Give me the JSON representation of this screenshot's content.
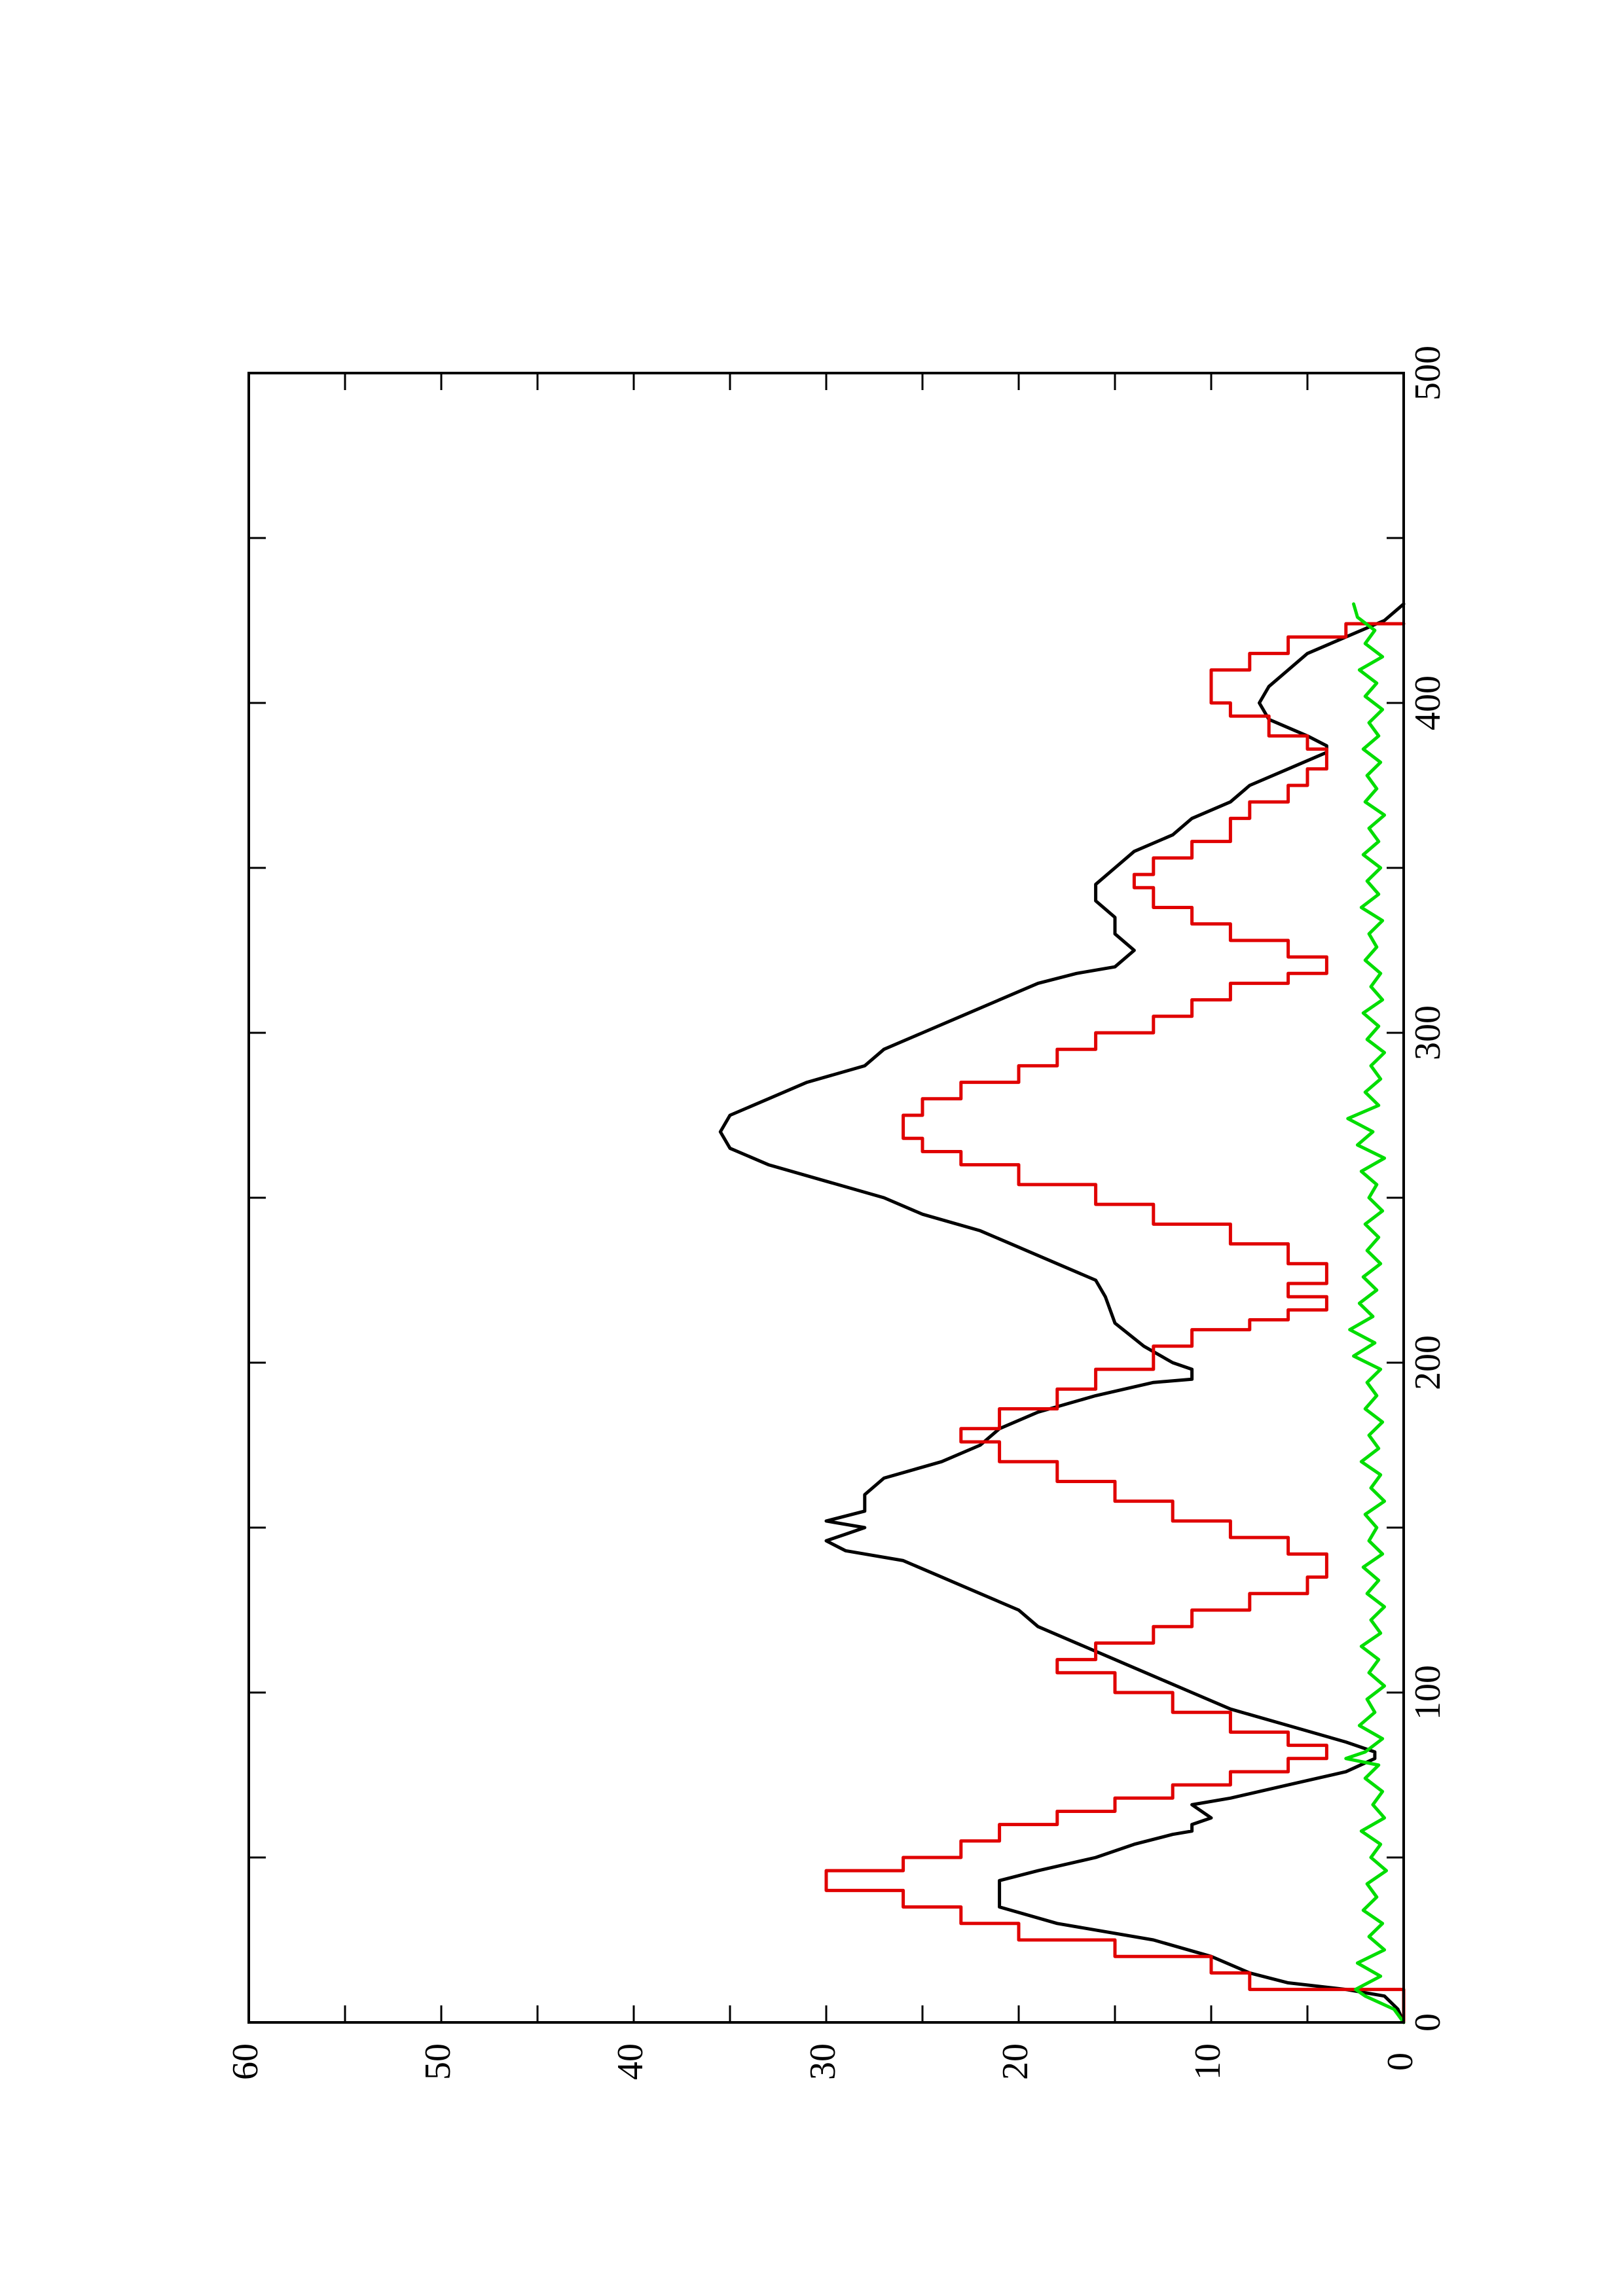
{
  "chart_data": {
    "type": "line",
    "orientation": "rotated-90-clockwise",
    "title": "",
    "xlabel": "",
    "ylabel": "",
    "xlim": [
      0,
      500
    ],
    "ylim": [
      0,
      60
    ],
    "x_ticks": [
      0,
      100,
      200,
      300,
      400,
      500
    ],
    "y_ticks": [
      0,
      10,
      20,
      30,
      40,
      50,
      60
    ],
    "x_tick_labels": [
      "0",
      "100",
      "200",
      "300",
      "400",
      "500"
    ],
    "y_tick_labels": [
      "0",
      "10",
      "20",
      "30",
      "40",
      "50",
      "60"
    ],
    "x_minor_step": 50,
    "y_minor_step": 5,
    "grid": false,
    "legend": "none",
    "series": [
      {
        "color": "#000000",
        "style": "solid",
        "points": [
          [
            0,
            0
          ],
          [
            4,
            0.3
          ],
          [
            8,
            1
          ],
          [
            10,
            3
          ],
          [
            12,
            6
          ],
          [
            15,
            8
          ],
          [
            20,
            10
          ],
          [
            25,
            13
          ],
          [
            30,
            18
          ],
          [
            35,
            21
          ],
          [
            43,
            21
          ],
          [
            46,
            19
          ],
          [
            50,
            16
          ],
          [
            54,
            14
          ],
          [
            57,
            12
          ],
          [
            58,
            11
          ],
          [
            60,
            11
          ],
          [
            62,
            10
          ],
          [
            66,
            11
          ],
          [
            68,
            9
          ],
          [
            72,
            6
          ],
          [
            76,
            3
          ],
          [
            80,
            1.5
          ],
          [
            82,
            1.5
          ],
          [
            85,
            3
          ],
          [
            90,
            6
          ],
          [
            95,
            9
          ],
          [
            100,
            11
          ],
          [
            105,
            13
          ],
          [
            110,
            15
          ],
          [
            115,
            17
          ],
          [
            120,
            19
          ],
          [
            125,
            20
          ],
          [
            130,
            22
          ],
          [
            135,
            24
          ],
          [
            140,
            26
          ],
          [
            143,
            29
          ],
          [
            146,
            30
          ],
          [
            148,
            29
          ],
          [
            150,
            28
          ],
          [
            152,
            30
          ],
          [
            155,
            28
          ],
          [
            160,
            28
          ],
          [
            165,
            27
          ],
          [
            170,
            24
          ],
          [
            175,
            22
          ],
          [
            180,
            21
          ],
          [
            185,
            19
          ],
          [
            190,
            16
          ],
          [
            194,
            13
          ],
          [
            195,
            11
          ],
          [
            198,
            11
          ],
          [
            200,
            12
          ],
          [
            205,
            13.5
          ],
          [
            212,
            15
          ],
          [
            220,
            15.5
          ],
          [
            225,
            16
          ],
          [
            230,
            18
          ],
          [
            235,
            20
          ],
          [
            240,
            22
          ],
          [
            245,
            25
          ],
          [
            250,
            27
          ],
          [
            255,
            30
          ],
          [
            260,
            33
          ],
          [
            265,
            35
          ],
          [
            270,
            35.5
          ],
          [
            275,
            35
          ],
          [
            280,
            33
          ],
          [
            285,
            31
          ],
          [
            290,
            28
          ],
          [
            295,
            27
          ],
          [
            300,
            25
          ],
          [
            305,
            23
          ],
          [
            310,
            21
          ],
          [
            315,
            19
          ],
          [
            318,
            17
          ],
          [
            320,
            15
          ],
          [
            325,
            14
          ],
          [
            330,
            15
          ],
          [
            335,
            15
          ],
          [
            340,
            16
          ],
          [
            345,
            16
          ],
          [
            350,
            15
          ],
          [
            355,
            14
          ],
          [
            360,
            12
          ],
          [
            365,
            11
          ],
          [
            370,
            9
          ],
          [
            375,
            8
          ],
          [
            380,
            6
          ],
          [
            385,
            4
          ],
          [
            387,
            4
          ],
          [
            390,
            5
          ],
          [
            395,
            7
          ],
          [
            400,
            7.5
          ],
          [
            405,
            7
          ],
          [
            410,
            6
          ],
          [
            415,
            5
          ],
          [
            420,
            3
          ],
          [
            425,
            1
          ],
          [
            430,
            0
          ]
        ]
      },
      {
        "color": "#e00000",
        "style": "steps",
        "points": [
          [
            0,
            0
          ],
          [
            5,
            0
          ],
          [
            10,
            8
          ],
          [
            15,
            10
          ],
          [
            20,
            15
          ],
          [
            25,
            20
          ],
          [
            30,
            23
          ],
          [
            35,
            26
          ],
          [
            40,
            30
          ],
          [
            43,
            30
          ],
          [
            46,
            26
          ],
          [
            50,
            23
          ],
          [
            55,
            21
          ],
          [
            60,
            18
          ],
          [
            64,
            15
          ],
          [
            68,
            12
          ],
          [
            72,
            9
          ],
          [
            76,
            6
          ],
          [
            80,
            4
          ],
          [
            84,
            6
          ],
          [
            88,
            9
          ],
          [
            94,
            12
          ],
          [
            100,
            15
          ],
          [
            106,
            18
          ],
          [
            110,
            16
          ],
          [
            115,
            13
          ],
          [
            120,
            11
          ],
          [
            125,
            8
          ],
          [
            130,
            5
          ],
          [
            135,
            4
          ],
          [
            139,
            4
          ],
          [
            142,
            6
          ],
          [
            147,
            9
          ],
          [
            152,
            12
          ],
          [
            158,
            15
          ],
          [
            164,
            18
          ],
          [
            170,
            21
          ],
          [
            176,
            23
          ],
          [
            180,
            21
          ],
          [
            186,
            18
          ],
          [
            192,
            16
          ],
          [
            198,
            13
          ],
          [
            205,
            11
          ],
          [
            210,
            8
          ],
          [
            213,
            6
          ],
          [
            216,
            4
          ],
          [
            220,
            6
          ],
          [
            224,
            4
          ],
          [
            227,
            4
          ],
          [
            230,
            6
          ],
          [
            236,
            9
          ],
          [
            242,
            13
          ],
          [
            248,
            16
          ],
          [
            254,
            20
          ],
          [
            260,
            23
          ],
          [
            264,
            25
          ],
          [
            268,
            26
          ],
          [
            272,
            26
          ],
          [
            275,
            25
          ],
          [
            280,
            23
          ],
          [
            285,
            20
          ],
          [
            290,
            18
          ],
          [
            295,
            16
          ],
          [
            300,
            13
          ],
          [
            305,
            11
          ],
          [
            310,
            9
          ],
          [
            315,
            6
          ],
          [
            318,
            4
          ],
          [
            320,
            4
          ],
          [
            323,
            6
          ],
          [
            328,
            9
          ],
          [
            333,
            11
          ],
          [
            338,
            13
          ],
          [
            344,
            14
          ],
          [
            348,
            13
          ],
          [
            353,
            11
          ],
          [
            358,
            9
          ],
          [
            365,
            8
          ],
          [
            370,
            6
          ],
          [
            375,
            5
          ],
          [
            380,
            4
          ],
          [
            383,
            4
          ],
          [
            386,
            5
          ],
          [
            390,
            7
          ],
          [
            396,
            9
          ],
          [
            400,
            10
          ],
          [
            405,
            10
          ],
          [
            410,
            8
          ],
          [
            415,
            6
          ],
          [
            420,
            3
          ],
          [
            424,
            0
          ]
        ]
      },
      {
        "color": "#00dd00",
        "style": "noisy",
        "points": [
          [
            0,
            0
          ],
          [
            4,
            0.5
          ],
          [
            8,
            2
          ],
          [
            10,
            2.5
          ],
          [
            14,
            1.2
          ],
          [
            18,
            2.4
          ],
          [
            22,
            1.0
          ],
          [
            26,
            1.8
          ],
          [
            30,
            1.1
          ],
          [
            34,
            2.1
          ],
          [
            38,
            1.4
          ],
          [
            42,
            1.9
          ],
          [
            46,
            0.9
          ],
          [
            50,
            1.7
          ],
          [
            54,
            1.2
          ],
          [
            58,
            2.2
          ],
          [
            62,
            1.0
          ],
          [
            66,
            1.6
          ],
          [
            70,
            1.1
          ],
          [
            74,
            2.0
          ],
          [
            78,
            1.3
          ],
          [
            80,
            3.0
          ],
          [
            82,
            2.0
          ],
          [
            86,
            1.1
          ],
          [
            90,
            2.3
          ],
          [
            94,
            1.5
          ],
          [
            98,
            1.9
          ],
          [
            102,
            1.0
          ],
          [
            106,
            1.8
          ],
          [
            110,
            1.3
          ],
          [
            114,
            2.2
          ],
          [
            118,
            1.2
          ],
          [
            122,
            1.7
          ],
          [
            126,
            1.0
          ],
          [
            130,
            1.9
          ],
          [
            134,
            1.3
          ],
          [
            138,
            2.1
          ],
          [
            142,
            1.1
          ],
          [
            146,
            1.8
          ],
          [
            150,
            1.4
          ],
          [
            154,
            2.0
          ],
          [
            158,
            1.0
          ],
          [
            162,
            1.7
          ],
          [
            166,
            1.2
          ],
          [
            170,
            2.2
          ],
          [
            174,
            1.3
          ],
          [
            178,
            1.8
          ],
          [
            182,
            1.1
          ],
          [
            186,
            2.0
          ],
          [
            190,
            1.4
          ],
          [
            194,
            1.9
          ],
          [
            198,
            1.2
          ],
          [
            202,
            2.6
          ],
          [
            206,
            1.5
          ],
          [
            210,
            2.8
          ],
          [
            214,
            1.6
          ],
          [
            218,
            2.3
          ],
          [
            222,
            1.4
          ],
          [
            226,
            2.1
          ],
          [
            230,
            1.2
          ],
          [
            234,
            1.9
          ],
          [
            238,
            1.3
          ],
          [
            242,
            2.0
          ],
          [
            246,
            1.1
          ],
          [
            250,
            1.8
          ],
          [
            254,
            1.4
          ],
          [
            258,
            2.2
          ],
          [
            262,
            1.0
          ],
          [
            266,
            2.4
          ],
          [
            270,
            1.6
          ],
          [
            274,
            2.9
          ],
          [
            278,
            1.3
          ],
          [
            282,
            2.0
          ],
          [
            286,
            1.2
          ],
          [
            290,
            1.7
          ],
          [
            294,
            1.0
          ],
          [
            298,
            1.9
          ],
          [
            302,
            1.3
          ],
          [
            306,
            2.1
          ],
          [
            310,
            1.1
          ],
          [
            314,
            1.7
          ],
          [
            318,
            1.2
          ],
          [
            322,
            2.0
          ],
          [
            326,
            1.4
          ],
          [
            330,
            1.8
          ],
          [
            334,
            1.1
          ],
          [
            338,
            2.2
          ],
          [
            342,
            1.3
          ],
          [
            346,
            1.9
          ],
          [
            350,
            1.2
          ],
          [
            354,
            2.1
          ],
          [
            358,
            1.3
          ],
          [
            362,
            1.8
          ],
          [
            366,
            1.0
          ],
          [
            370,
            2.0
          ],
          [
            374,
            1.4
          ],
          [
            378,
            1.9
          ],
          [
            382,
            1.2
          ],
          [
            386,
            2.1
          ],
          [
            390,
            1.3
          ],
          [
            394,
            1.8
          ],
          [
            398,
            1.1
          ],
          [
            402,
            2.0
          ],
          [
            406,
            1.4
          ],
          [
            410,
            2.3
          ],
          [
            414,
            1.1
          ],
          [
            418,
            2.0
          ],
          [
            422,
            1.5
          ],
          [
            426,
            2.4
          ],
          [
            430,
            2.6
          ]
        ]
      }
    ]
  }
}
